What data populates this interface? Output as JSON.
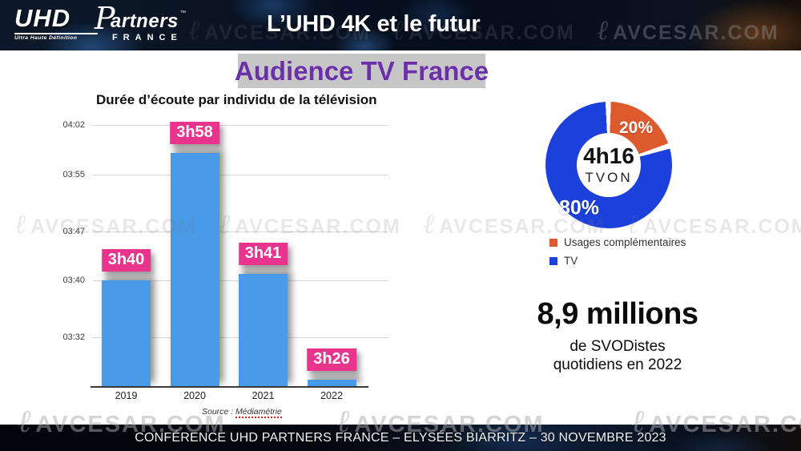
{
  "header": {
    "logo": {
      "uhd": "UHD",
      "subtitle": "Ultra Haute Définition",
      "partners_initial": "P",
      "partners_rest": "artners",
      "tm": "™",
      "country": "FRANCE"
    },
    "title": "L’UHD 4K et le futur"
  },
  "banner": {
    "title": "Audience TV France"
  },
  "watermark": {
    "glyph": "ℓ",
    "text": "AVCESAR.COM"
  },
  "stat": {
    "headline": "8,9 millions",
    "line1": "de SVODistes",
    "line2": "quotidiens en 2022"
  },
  "footer": {
    "text": "CONFÉRENCE UHD PARTNERS FRANCE – ELYSÉES BIARRITZ – 30 NOVEMBRE 2023"
  },
  "colors": {
    "bar_blue": "#479BE8",
    "badge_pink": "#E8348C",
    "donut_orange": "#DD5A2C",
    "donut_blue": "#1C40DB",
    "banner_purple": "#6B2FA8",
    "banner_gray": "#C6C6C6",
    "header_bg": "#081120"
  },
  "chart_data": [
    {
      "type": "bar",
      "title": "Durée d’écoute par individu de la télévision",
      "categories": [
        "2019",
        "2020",
        "2021",
        "2022"
      ],
      "values_minutes": [
        220,
        238,
        221,
        206
      ],
      "bar_labels": [
        "3h40",
        "3h58",
        "3h41",
        "3h26"
      ],
      "y_ticks": [
        {
          "label": "04:02",
          "minutes": 242
        },
        {
          "label": "03:55",
          "minutes": 235
        },
        {
          "label": "03:47",
          "minutes": 227
        },
        {
          "label": "03:40",
          "minutes": 220
        },
        {
          "label": "03:32",
          "minutes": 212
        }
      ],
      "ylim_minutes": [
        205,
        242
      ],
      "xlabel": "",
      "ylabel": "",
      "grid": true,
      "legend": false,
      "bar_color": "#479BE8",
      "label_bg": "#E8348C",
      "source_prefix": "Source : ",
      "source_name": "Médiamétrie"
    },
    {
      "type": "pie",
      "donut": true,
      "center_value": "4h16",
      "center_label": "TVON",
      "slices": [
        {
          "label": "Usages complémentaires",
          "value": 20,
          "pct_label": "20%",
          "color": "#DD5A2C"
        },
        {
          "label": "TV",
          "value": 80,
          "pct_label": "80%",
          "color": "#1C40DB"
        }
      ],
      "legend_position": "bottom-left"
    }
  ]
}
